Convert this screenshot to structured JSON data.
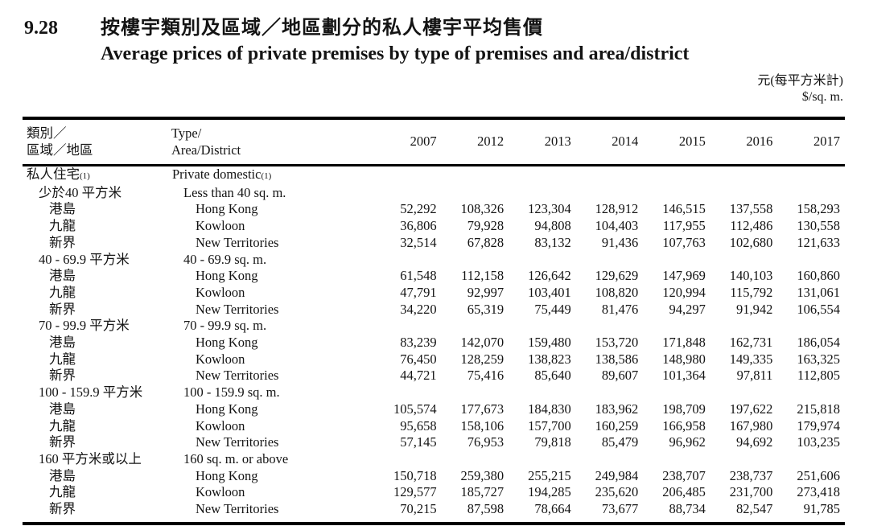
{
  "page": {
    "section_number": "9.28",
    "title_zh": "按樓宇類別及區域／地區劃分的私人樓宇平均售價",
    "title_en": "Average prices of private premises by type of premises and area/district",
    "unit_zh": "元(每平方米計)",
    "unit_en": "$/sq. m."
  },
  "table": {
    "header": {
      "zh_line1": "類別／",
      "zh_line2": "區域／地區",
      "en_line1": "Type/",
      "en_line2": "Area/District",
      "years": [
        "2007",
        "2012",
        "2013",
        "2014",
        "2015",
        "2016",
        "2017"
      ]
    },
    "rows": [
      {
        "zh": "私人住宅",
        "en": "Private domestic",
        "note": "(1)",
        "indent": 0,
        "values": []
      },
      {
        "zh": "少於40 平方米",
        "en": "Less than 40 sq. m.",
        "indent": 1,
        "values": []
      },
      {
        "zh": "港島",
        "en": "Hong Kong",
        "indent": 2,
        "values": [
          "52,292",
          "108,326",
          "123,304",
          "128,912",
          "146,515",
          "137,558",
          "158,293"
        ]
      },
      {
        "zh": "九龍",
        "en": "Kowloon",
        "indent": 2,
        "values": [
          "36,806",
          "79,928",
          "94,808",
          "104,403",
          "117,955",
          "112,486",
          "130,558"
        ]
      },
      {
        "zh": "新界",
        "en": "New Territories",
        "indent": 2,
        "values": [
          "32,514",
          "67,828",
          "83,132",
          "91,436",
          "107,763",
          "102,680",
          "121,633"
        ]
      },
      {
        "zh": "40 - 69.9 平方米",
        "en": "40 - 69.9 sq. m.",
        "indent": 1,
        "values": []
      },
      {
        "zh": "港島",
        "en": "Hong Kong",
        "indent": 2,
        "values": [
          "61,548",
          "112,158",
          "126,642",
          "129,629",
          "147,969",
          "140,103",
          "160,860"
        ]
      },
      {
        "zh": "九龍",
        "en": "Kowloon",
        "indent": 2,
        "values": [
          "47,791",
          "92,997",
          "103,401",
          "108,820",
          "120,994",
          "115,792",
          "131,061"
        ]
      },
      {
        "zh": "新界",
        "en": "New Territories",
        "indent": 2,
        "values": [
          "34,220",
          "65,319",
          "75,449",
          "81,476",
          "94,297",
          "91,942",
          "106,554"
        ]
      },
      {
        "zh": "70 - 99.9 平方米",
        "en": "70 - 99.9 sq. m.",
        "indent": 1,
        "values": []
      },
      {
        "zh": "港島",
        "en": "Hong Kong",
        "indent": 2,
        "values": [
          "83,239",
          "142,070",
          "159,480",
          "153,720",
          "171,848",
          "162,731",
          "186,054"
        ]
      },
      {
        "zh": "九龍",
        "en": "Kowloon",
        "indent": 2,
        "values": [
          "76,450",
          "128,259",
          "138,823",
          "138,586",
          "148,980",
          "149,335",
          "163,325"
        ]
      },
      {
        "zh": "新界",
        "en": "New Territories",
        "indent": 2,
        "values": [
          "44,721",
          "75,416",
          "85,640",
          "89,607",
          "101,364",
          "97,811",
          "112,805"
        ]
      },
      {
        "zh": "100 - 159.9 平方米",
        "en": "100 - 159.9 sq. m.",
        "indent": 1,
        "values": []
      },
      {
        "zh": "港島",
        "en": "Hong Kong",
        "indent": 2,
        "values": [
          "105,574",
          "177,673",
          "184,830",
          "183,962",
          "198,709",
          "197,622",
          "215,818"
        ]
      },
      {
        "zh": "九龍",
        "en": "Kowloon",
        "indent": 2,
        "values": [
          "95,658",
          "158,106",
          "157,700",
          "160,259",
          "166,958",
          "167,980",
          "179,974"
        ]
      },
      {
        "zh": "新界",
        "en": "New Territories",
        "indent": 2,
        "values": [
          "57,145",
          "76,953",
          "79,818",
          "85,479",
          "96,962",
          "94,692",
          "103,235"
        ]
      },
      {
        "zh": "160 平方米或以上",
        "en": "160 sq. m. or above",
        "indent": 1,
        "values": []
      },
      {
        "zh": "港島",
        "en": "Hong Kong",
        "indent": 2,
        "values": [
          "150,718",
          "259,380",
          "255,215",
          "249,984",
          "238,707",
          "238,737",
          "251,606"
        ]
      },
      {
        "zh": "九龍",
        "en": "Kowloon",
        "indent": 2,
        "values": [
          "129,577",
          "185,727",
          "194,285",
          "235,620",
          "206,485",
          "231,700",
          "273,418"
        ]
      },
      {
        "zh": "新界",
        "en": "New Territories",
        "indent": 2,
        "values": [
          "70,215",
          "87,598",
          "78,664",
          "73,677",
          "88,734",
          "82,547",
          "91,785"
        ]
      }
    ]
  }
}
